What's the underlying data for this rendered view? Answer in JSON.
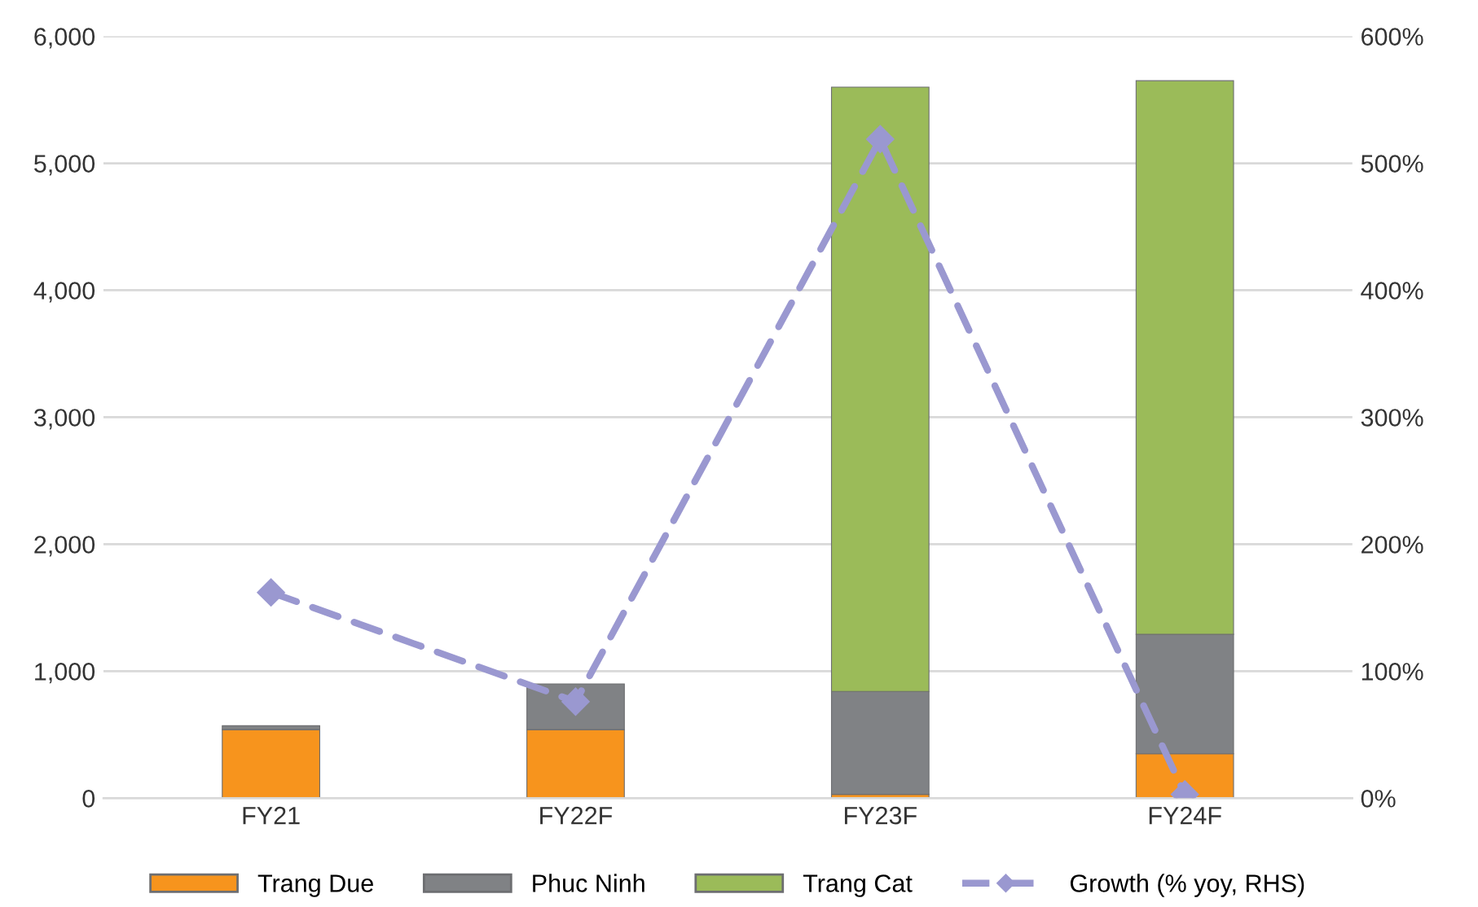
{
  "chart_data": {
    "type": "bar",
    "stacked": true,
    "categories": [
      "FY21",
      "FY22F",
      "FY23F",
      "FY24F"
    ],
    "series": [
      {
        "name": "Trang Due",
        "color": "#f7941d",
        "values": [
          540,
          540,
          30,
          350
        ]
      },
      {
        "name": "Phuc Ninh",
        "color": "#808285",
        "values": [
          30,
          360,
          810,
          940
        ]
      },
      {
        "name": "Trang Cat",
        "color": "#9bbb59",
        "values": [
          null,
          null,
          4760,
          4360
        ]
      },
      {
        "name": "Growth (% yoy, RHS)",
        "type": "line",
        "axis": "y2",
        "color": "#9a98d0",
        "line_style": "dashed",
        "marker": "diamond",
        "values": [
          162,
          76,
          519,
          3
        ]
      }
    ],
    "ylim": [
      0,
      6000
    ],
    "yticks": [
      {
        "value": 0,
        "label": "0"
      },
      {
        "value": 1000,
        "label": "1,000"
      },
      {
        "value": 2000,
        "label": "2,000"
      },
      {
        "value": 3000,
        "label": "3,000"
      },
      {
        "value": 4000,
        "label": "4,000"
      },
      {
        "value": 5000,
        "label": "5,000"
      },
      {
        "value": 6000,
        "label": "6,000"
      }
    ],
    "y2lim": [
      0,
      600
    ],
    "y2ticks": [
      {
        "value": 0,
        "label": "0%"
      },
      {
        "value": 100,
        "label": "100%"
      },
      {
        "value": 200,
        "label": "200%"
      },
      {
        "value": 300,
        "label": "300%"
      },
      {
        "value": 400,
        "label": "400%"
      },
      {
        "value": 500,
        "label": "500%"
      },
      {
        "value": 600,
        "label": "600%"
      }
    ],
    "grid": "y",
    "legend": "bottom"
  }
}
